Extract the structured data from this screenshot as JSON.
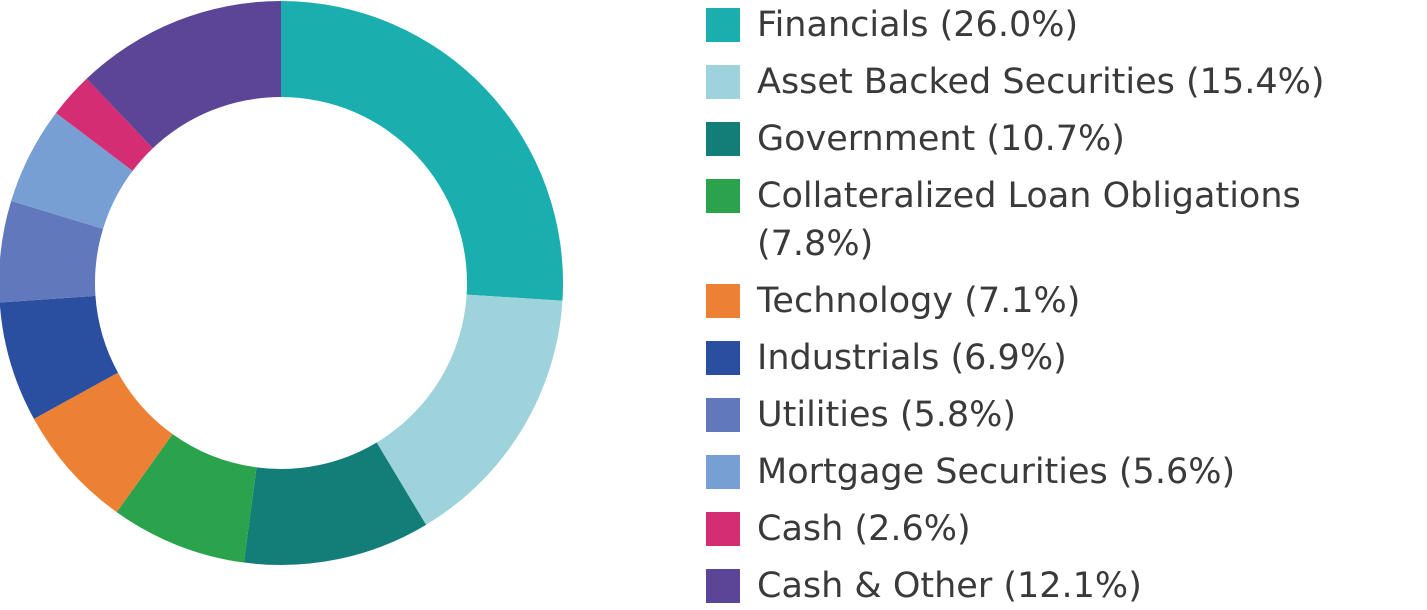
{
  "chart_data": {
    "type": "donut",
    "categories": [
      "Financials (26.0%)",
      "Asset Backed Securities (15.4%)",
      "Government (10.7%)",
      "Collateralized Loan Obligations (7.8%)",
      "Technology (7.1%)",
      "Industrials (6.9%)",
      "Utilities (5.8%)",
      "Mortgage Securities (5.6%)",
      "Cash (2.6%)",
      "Cash & Other (12.1%)"
    ],
    "values": [
      26.0,
      15.4,
      10.7,
      7.8,
      7.1,
      6.9,
      5.8,
      5.6,
      2.6,
      12.1
    ],
    "colors": [
      "#1aaeae",
      "#9fd3db",
      "#137d78",
      "#2ba24c",
      "#ec8034",
      "#2b4fa0",
      "#6278bd",
      "#789fd3",
      "#d42d74",
      "#5b4596"
    ],
    "legend": "right"
  }
}
